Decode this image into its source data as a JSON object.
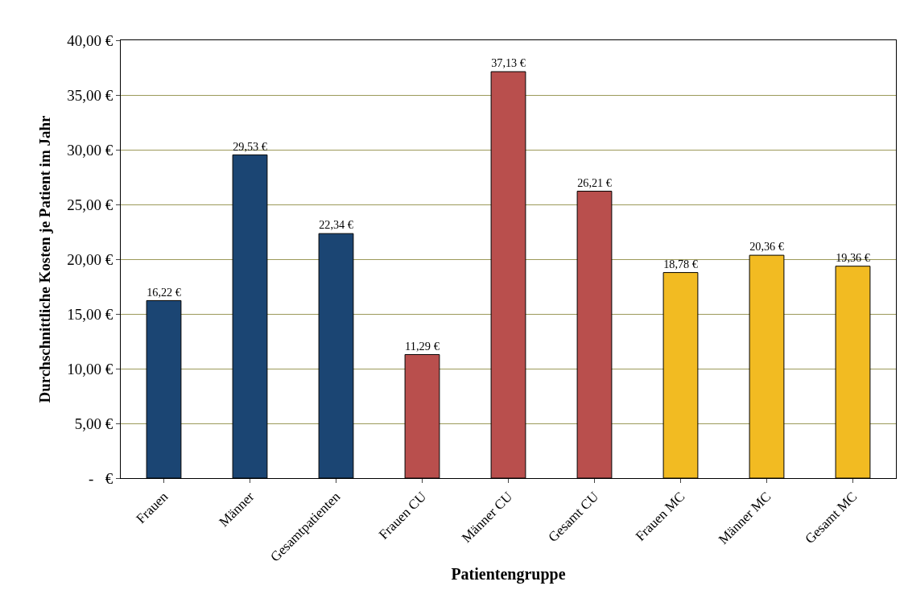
{
  "chart_data": {
    "type": "bar",
    "xlabel": "Patientengruppe",
    "ylabel": "Durchschnittliche Kosten je Patient im Jahr",
    "categories": [
      "Frauen",
      "Männer",
      "Gesamtpatienten",
      "Frauen CU",
      "Männer CU",
      "Gesamt CU",
      "Frauen MC",
      "Männer MC",
      "Gesamt MC"
    ],
    "values": [
      16.22,
      29.53,
      22.34,
      11.29,
      37.13,
      26.21,
      18.78,
      20.36,
      19.36
    ],
    "colors": [
      "#1b4573",
      "#1b4573",
      "#1b4573",
      "#b94f4d",
      "#b94f4d",
      "#b94f4d",
      "#f2bb22",
      "#f2bb22",
      "#f2bb22"
    ],
    "value_labels": [
      "16,22 €",
      "29,53 €",
      "22,34 €",
      "11,29 €",
      "37,13 €",
      "26,21 €",
      "18,78 €",
      "20,36 €",
      "19,36 €"
    ],
    "ylim": [
      0,
      40
    ],
    "yticks": [
      {
        "value": 0,
        "label": "-   €"
      },
      {
        "value": 5,
        "label": "5,00 €"
      },
      {
        "value": 10,
        "label": "10,00 €"
      },
      {
        "value": 15,
        "label": "15,00 €"
      },
      {
        "value": 20,
        "label": "20,00 €"
      },
      {
        "value": 25,
        "label": "25,00 €"
      },
      {
        "value": 30,
        "label": "30,00 €"
      },
      {
        "value": 35,
        "label": "35,00 €"
      },
      {
        "value": 40,
        "label": "40,00 €"
      }
    ],
    "grid": "y",
    "legend": false
  }
}
